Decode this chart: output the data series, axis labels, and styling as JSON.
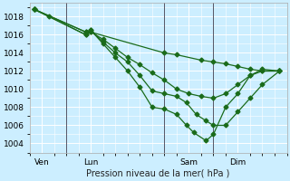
{
  "bg_color": "#cceeff",
  "grid_color": "#ffffff",
  "line_color": "#1a6b1a",
  "xlabel": "Pression niveau de la mer( hPa )",
  "ylim": [
    1003.0,
    1019.5
  ],
  "yticks": [
    1004,
    1006,
    1008,
    1010,
    1012,
    1014,
    1016,
    1018
  ],
  "xtick_labels": [
    "Ven",
    "Lun",
    "Sam",
    "Dim"
  ],
  "xtick_positions": [
    0.5,
    2.5,
    6.5,
    8.5
  ],
  "xmin": 0.0,
  "xmax": 10.5,
  "vlines_x": [
    1.5,
    5.5,
    7.5
  ],
  "lines": [
    {
      "x": [
        0.2,
        0.8,
        2.3,
        2.5,
        5.5,
        6.0,
        7.0,
        7.5,
        8.0,
        8.5,
        9.0,
        9.5,
        10.2
      ],
      "y": [
        1018.8,
        1018.0,
        1016.0,
        1016.3,
        1014.0,
        1013.8,
        1013.2,
        1013.0,
        1012.8,
        1012.5,
        1012.2,
        1012.0,
        1012.0
      ],
      "marker": "D",
      "markersize": 2.5,
      "linewidth": 0.9,
      "linestyle": "-"
    },
    {
      "x": [
        0.2,
        2.3,
        2.5,
        3.0,
        3.5,
        4.0,
        4.5,
        5.0,
        5.5,
        6.0,
        6.5,
        7.0,
        7.5,
        8.0,
        8.5,
        9.0,
        9.5,
        10.2
      ],
      "y": [
        1018.8,
        1016.0,
        1016.3,
        1015.5,
        1014.5,
        1013.5,
        1012.7,
        1011.8,
        1011.0,
        1010.0,
        1009.5,
        1009.2,
        1009.0,
        1009.5,
        1010.5,
        1011.5,
        1012.0,
        1012.0
      ],
      "marker": "D",
      "markersize": 2.5,
      "linewidth": 0.9,
      "linestyle": "-"
    },
    {
      "x": [
        0.2,
        2.3,
        2.5,
        3.0,
        3.5,
        4.0,
        4.5,
        5.0,
        5.5,
        6.0,
        6.4,
        6.8,
        7.2,
        7.5,
        8.0,
        8.5,
        9.0,
        9.5,
        10.2
      ],
      "y": [
        1018.8,
        1016.3,
        1016.5,
        1015.2,
        1014.0,
        1013.0,
        1011.5,
        1009.8,
        1009.5,
        1009.2,
        1008.5,
        1007.2,
        1006.5,
        1006.0,
        1006.0,
        1007.5,
        1009.0,
        1010.5,
        1012.0
      ],
      "marker": "D",
      "markersize": 2.5,
      "linewidth": 0.9,
      "linestyle": "-"
    },
    {
      "x": [
        0.2,
        2.3,
        2.5,
        3.0,
        3.5,
        4.0,
        4.5,
        5.0,
        5.5,
        6.0,
        6.4,
        6.7,
        7.2,
        7.5,
        8.0,
        8.5,
        9.0,
        9.5,
        10.2
      ],
      "y": [
        1018.8,
        1016.3,
        1016.5,
        1015.0,
        1013.5,
        1012.0,
        1010.2,
        1008.0,
        1007.8,
        1007.2,
        1006.0,
        1005.2,
        1004.3,
        1005.0,
        1008.0,
        1009.5,
        1011.5,
        1012.2,
        1012.0
      ],
      "marker": "D",
      "markersize": 2.5,
      "linewidth": 0.9,
      "linestyle": "-"
    }
  ],
  "fontsize_xlabel": 7,
  "fontsize_tick": 6.5
}
